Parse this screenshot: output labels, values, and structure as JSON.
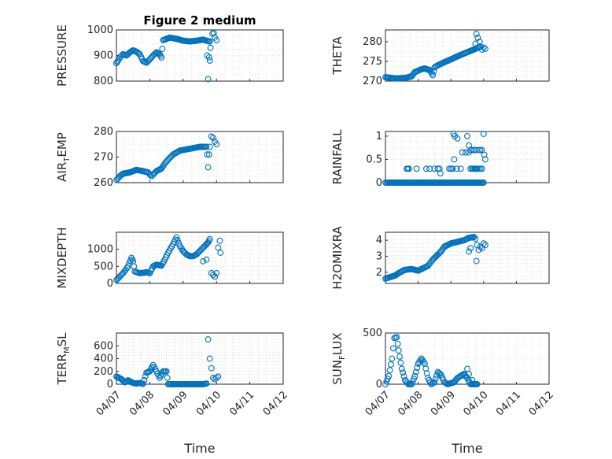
{
  "figure_title": "Figure 2 medium",
  "marker_color": "#0072BD",
  "chart_data": [
    {
      "type": "scatter",
      "panel": "pressure",
      "ylabel": "PRESSURE",
      "ylim": [
        800,
        1000
      ],
      "yticks": [
        800,
        900,
        1000
      ],
      "xlim": [
        0,
        5
      ],
      "xticks": [
        "04/07",
        "04/08",
        "04/09",
        "04/10",
        "04/11",
        "04/12"
      ],
      "anchors": [
        [
          0,
          870
        ],
        [
          0.05,
          880
        ],
        [
          0.12,
          895
        ],
        [
          0.2,
          905
        ],
        [
          0.3,
          900
        ],
        [
          0.4,
          912
        ],
        [
          0.5,
          920
        ],
        [
          0.6,
          915
        ],
        [
          0.7,
          905
        ],
        [
          0.8,
          878
        ],
        [
          0.9,
          872
        ],
        [
          1,
          885
        ],
        [
          1.1,
          900
        ],
        [
          1.2,
          912
        ],
        [
          1.3,
          905
        ],
        [
          1.35,
          892
        ],
        [
          1.4,
          960
        ],
        [
          1.6,
          970
        ],
        [
          1.8,
          965
        ],
        [
          2,
          958
        ],
        [
          2.2,
          955
        ],
        [
          2.4,
          958
        ],
        [
          2.6,
          962
        ],
        [
          2.7,
          958
        ],
        [
          2.8,
          955
        ]
      ],
      "extra": [
        [
          2.72,
          900
        ],
        [
          2.75,
          808
        ],
        [
          2.78,
          893
        ],
        [
          2.8,
          880
        ],
        [
          2.82,
          930
        ],
        [
          2.88,
          985
        ],
        [
          2.92,
          988
        ],
        [
          2.95,
          970
        ],
        [
          3.0,
          960
        ]
      ]
    },
    {
      "type": "scatter",
      "panel": "theta",
      "ylabel": "THETA",
      "ylim": [
        270,
        283
      ],
      "yticks": [
        270,
        275,
        280
      ],
      "xlim": [
        0,
        5
      ],
      "xticks": [
        "04/07",
        "04/08",
        "04/09",
        "04/10",
        "04/11",
        "04/12"
      ],
      "anchors": [
        [
          0,
          271
        ],
        [
          0.3,
          270.7
        ],
        [
          0.6,
          270.8
        ],
        [
          0.8,
          271.2
        ],
        [
          0.9,
          272.3
        ],
        [
          1.1,
          273
        ],
        [
          1.2,
          273.2
        ],
        [
          1.35,
          272.8
        ],
        [
          1.45,
          271.5
        ],
        [
          1.5,
          273.5
        ],
        [
          1.6,
          274
        ],
        [
          1.8,
          274.8
        ],
        [
          2,
          275.5
        ],
        [
          2.2,
          276.3
        ],
        [
          2.4,
          277
        ],
        [
          2.55,
          277.5
        ],
        [
          2.7,
          278
        ],
        [
          2.9,
          278.8
        ]
      ],
      "extra": [
        [
          2.75,
          279.5
        ],
        [
          2.78,
          282
        ],
        [
          2.82,
          281
        ],
        [
          2.88,
          280
        ],
        [
          2.95,
          278
        ],
        [
          3.0,
          278.5
        ],
        [
          3.05,
          278.2
        ]
      ]
    },
    {
      "type": "scatter",
      "panel": "air_temp",
      "ylabel": "AIR",
      "ylabel_sub": "T",
      "ylabel_rest": "EMP",
      "ylim": [
        260,
        280
      ],
      "yticks": [
        260,
        270,
        280
      ],
      "xlim": [
        0,
        5
      ],
      "xticks": [
        "04/07",
        "04/08",
        "04/09",
        "04/10",
        "04/11",
        "04/12"
      ],
      "anchors": [
        [
          0,
          261
        ],
        [
          0.1,
          262.5
        ],
        [
          0.2,
          263.5
        ],
        [
          0.4,
          264
        ],
        [
          0.6,
          265
        ],
        [
          0.8,
          264.5
        ],
        [
          0.95,
          264
        ],
        [
          1.05,
          262.5
        ],
        [
          1.2,
          264.5
        ],
        [
          1.35,
          265.5
        ],
        [
          1.45,
          267.5
        ],
        [
          1.55,
          269
        ],
        [
          1.7,
          271
        ],
        [
          1.9,
          272.5
        ],
        [
          2.1,
          273
        ],
        [
          2.3,
          273.5
        ],
        [
          2.5,
          274
        ],
        [
          2.6,
          274
        ],
        [
          2.7,
          274
        ]
      ],
      "extra": [
        [
          2.72,
          271
        ],
        [
          2.75,
          266
        ],
        [
          2.78,
          271
        ],
        [
          2.8,
          274
        ],
        [
          2.85,
          278
        ],
        [
          2.9,
          277.5
        ],
        [
          2.95,
          276
        ],
        [
          3.0,
          275
        ]
      ]
    },
    {
      "type": "scatter",
      "panel": "rainfall",
      "ylabel": "RAINFALL",
      "ylim": [
        0,
        1.1
      ],
      "yticks": [
        0,
        0.5,
        1
      ],
      "xlim": [
        0,
        5
      ],
      "xticks": [
        "04/07",
        "04/08",
        "04/09",
        "04/10",
        "04/11",
        "04/12"
      ],
      "anchors": [
        [
          0,
          0
        ],
        [
          3.0,
          0
        ]
      ],
      "extra": [
        [
          0.65,
          0.3
        ],
        [
          0.68,
          0.3
        ],
        [
          0.72,
          0.3
        ],
        [
          0.95,
          0.3
        ],
        [
          1.25,
          0.3
        ],
        [
          1.35,
          0.3
        ],
        [
          1.5,
          0.3
        ],
        [
          1.6,
          0.3
        ],
        [
          1.65,
          0.3
        ],
        [
          1.68,
          0.2
        ],
        [
          1.95,
          0.3
        ],
        [
          2.0,
          0.3
        ],
        [
          2.05,
          0.3
        ],
        [
          2.18,
          0.3
        ],
        [
          2.3,
          0.3
        ],
        [
          2.6,
          0.3
        ],
        [
          2.65,
          0.3
        ],
        [
          2.68,
          0.3
        ],
        [
          2.72,
          0.3
        ],
        [
          2.75,
          0.3
        ],
        [
          2.78,
          0.3
        ],
        [
          2.8,
          0.3
        ],
        [
          2.85,
          0.3
        ],
        [
          2.9,
          0.3
        ],
        [
          2.95,
          0.3
        ],
        [
          2.08,
          1.05
        ],
        [
          2.12,
          1.0
        ],
        [
          2.1,
          0.5
        ],
        [
          2.2,
          0.95
        ],
        [
          2.35,
          0.65
        ],
        [
          2.45,
          0.65
        ],
        [
          2.55,
          0.65
        ],
        [
          2.6,
          0.7
        ],
        [
          2.65,
          0.7
        ],
        [
          2.7,
          0.7
        ],
        [
          2.75,
          0.7
        ],
        [
          2.85,
          0.7
        ],
        [
          2.9,
          0.7
        ],
        [
          2.95,
          0.7
        ],
        [
          2.5,
          1.0
        ],
        [
          2.55,
          0.8
        ],
        [
          3.0,
          1.05
        ],
        [
          3.02,
          0.6
        ],
        [
          3.05,
          0.5
        ]
      ]
    },
    {
      "type": "scatter",
      "panel": "mixdepth",
      "ylabel": "MIXDEPTH",
      "ylim": [
        0,
        1500
      ],
      "yticks": [
        0,
        500,
        1000
      ],
      "xlim": [
        0,
        5
      ],
      "xticks": [
        "04/07",
        "04/08",
        "04/09",
        "04/10",
        "04/11",
        "04/12"
      ],
      "anchors": [
        [
          0,
          100
        ],
        [
          0.2,
          300
        ],
        [
          0.35,
          500
        ],
        [
          0.45,
          750
        ],
        [
          0.5,
          650
        ],
        [
          0.55,
          350
        ],
        [
          0.7,
          300
        ],
        [
          0.8,
          310
        ],
        [
          0.9,
          330
        ],
        [
          1,
          300
        ],
        [
          1.1,
          500
        ],
        [
          1.2,
          550
        ],
        [
          1.35,
          520
        ],
        [
          1.45,
          700
        ],
        [
          1.55,
          900
        ],
        [
          1.7,
          1150
        ],
        [
          1.8,
          1350
        ],
        [
          1.9,
          1100
        ],
        [
          2.0,
          950
        ],
        [
          2.1,
          850
        ],
        [
          2.2,
          800
        ],
        [
          2.3,
          800
        ],
        [
          2.4,
          850
        ],
        [
          2.5,
          950
        ],
        [
          2.6,
          1050
        ],
        [
          2.7,
          1150
        ],
        [
          2.75,
          1200
        ],
        [
          2.8,
          1300
        ]
      ],
      "extra": [
        [
          2.6,
          650
        ],
        [
          2.7,
          700
        ],
        [
          2.85,
          300
        ],
        [
          2.9,
          250
        ],
        [
          2.95,
          200
        ],
        [
          3.0,
          300
        ],
        [
          3.05,
          1050
        ],
        [
          3.1,
          1250
        ],
        [
          3.12,
          900
        ]
      ]
    },
    {
      "type": "scatter",
      "panel": "h2omixra",
      "ylabel": "H2OMIXRA",
      "ylim": [
        1.3,
        4.5
      ],
      "yticks": [
        2,
        3,
        4
      ],
      "xlim": [
        0,
        5
      ],
      "xticks": [
        "04/07",
        "04/08",
        "04/09",
        "04/10",
        "04/11",
        "04/12"
      ],
      "anchors": [
        [
          0,
          1.6
        ],
        [
          0.3,
          1.8
        ],
        [
          0.45,
          2.0
        ],
        [
          0.6,
          2.15
        ],
        [
          0.8,
          2.2
        ],
        [
          1.0,
          2.1
        ],
        [
          1.1,
          2.2
        ],
        [
          1.3,
          2.4
        ],
        [
          1.45,
          2.8
        ],
        [
          1.6,
          3.1
        ],
        [
          1.7,
          3.3
        ],
        [
          1.8,
          3.6
        ],
        [
          2.0,
          3.8
        ],
        [
          2.2,
          3.9
        ],
        [
          2.4,
          4.0
        ],
        [
          2.55,
          4.15
        ],
        [
          2.7,
          4.2
        ]
      ],
      "extra": [
        [
          2.55,
          3.3
        ],
        [
          2.6,
          3.5
        ],
        [
          2.75,
          4.1
        ],
        [
          2.78,
          2.7
        ],
        [
          2.8,
          3.7
        ],
        [
          2.85,
          3.4
        ],
        [
          2.9,
          3.6
        ],
        [
          2.95,
          3.5
        ],
        [
          3.0,
          3.8
        ],
        [
          3.05,
          3.7
        ]
      ]
    },
    {
      "type": "scatter",
      "panel": "terr_msl",
      "ylabel": "TERR",
      "ylabel_sub": "M",
      "ylabel_rest": "SL",
      "ylim": [
        0,
        800
      ],
      "yticks": [
        0,
        200,
        400,
        600
      ],
      "xlim": [
        0,
        5
      ],
      "xticks": [
        "04/07",
        "04/08",
        "04/09",
        "04/10",
        "04/11",
        "04/12"
      ],
      "anchors": [
        [
          0,
          120
        ],
        [
          0.15,
          80
        ],
        [
          0.25,
          30
        ],
        [
          0.35,
          60
        ],
        [
          0.5,
          20
        ],
        [
          0.6,
          10
        ],
        [
          0.7,
          20
        ],
        [
          0.8,
          5
        ],
        [
          0.9,
          180
        ],
        [
          1.0,
          200
        ],
        [
          1.1,
          300
        ],
        [
          1.2,
          200
        ],
        [
          1.3,
          100
        ],
        [
          1.4,
          200
        ],
        [
          1.5,
          200
        ],
        [
          1.55,
          0
        ],
        [
          2.6,
          0
        ],
        [
          2.7,
          10
        ]
      ],
      "extra": [
        [
          2.75,
          700
        ],
        [
          2.8,
          400
        ],
        [
          2.85,
          250
        ],
        [
          2.9,
          100
        ],
        [
          2.95,
          80
        ],
        [
          3.0,
          100
        ],
        [
          3.05,
          120
        ]
      ]
    },
    {
      "type": "scatter",
      "panel": "sun_flux",
      "ylabel": "SUN",
      "ylabel_sub": "F",
      "ylabel_rest": "LUX",
      "ylim": [
        0,
        500
      ],
      "yticks": [
        0,
        500
      ],
      "xlim": [
        0,
        5
      ],
      "xticks": [
        "04/07",
        "04/08",
        "04/09",
        "04/10",
        "04/11",
        "04/12"
      ],
      "anchors": [
        [
          0,
          0
        ],
        [
          0.1,
          80
        ],
        [
          0.2,
          250
        ],
        [
          0.27,
          450
        ],
        [
          0.35,
          460
        ],
        [
          0.4,
          330
        ],
        [
          0.5,
          150
        ],
        [
          0.6,
          40
        ],
        [
          0.7,
          0
        ],
        [
          0.8,
          0
        ],
        [
          0.9,
          80
        ],
        [
          1.0,
          200
        ],
        [
          1.1,
          250
        ],
        [
          1.2,
          200
        ],
        [
          1.3,
          60
        ],
        [
          1.4,
          0
        ],
        [
          1.5,
          20
        ],
        [
          1.6,
          120
        ],
        [
          1.7,
          90
        ],
        [
          1.8,
          20
        ],
        [
          1.9,
          0
        ],
        [
          2.1,
          20
        ],
        [
          2.2,
          60
        ],
        [
          2.3,
          80
        ],
        [
          2.4,
          100
        ],
        [
          2.5,
          60
        ],
        [
          2.6,
          0
        ],
        [
          2.8,
          0
        ]
      ],
      "extra": [
        [
          2.5,
          150
        ],
        [
          2.55,
          100
        ],
        [
          2.65,
          40
        ],
        [
          2.7,
          0
        ],
        [
          2.75,
          0
        ],
        [
          2.8,
          0
        ]
      ]
    }
  ],
  "xlabel": "Time"
}
